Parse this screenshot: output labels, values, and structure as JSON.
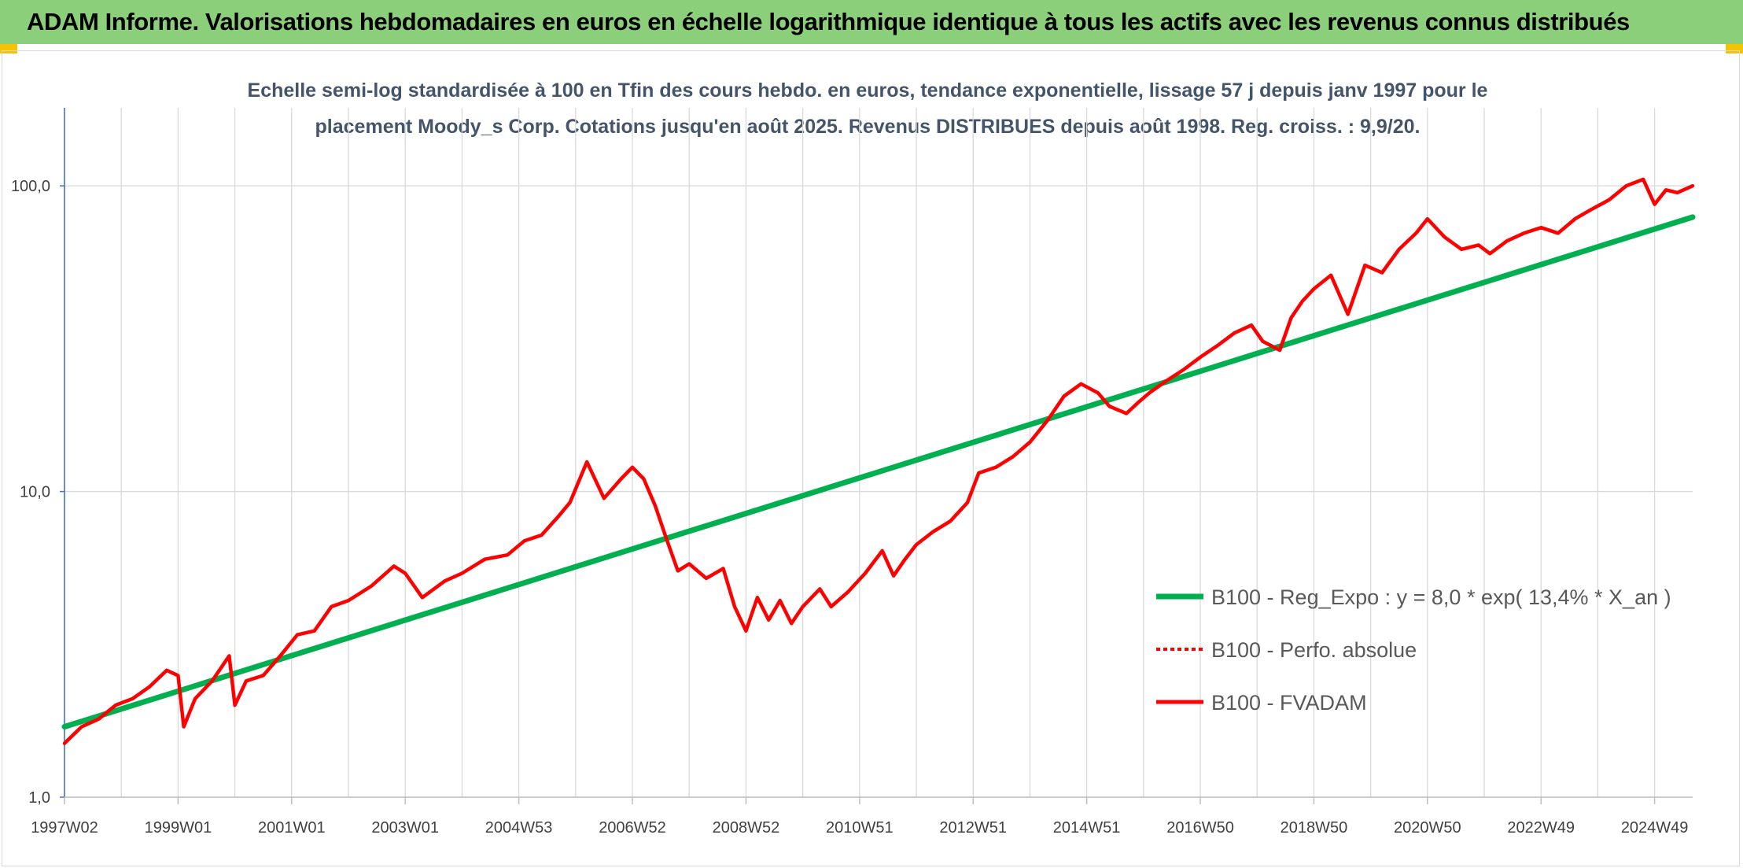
{
  "page": {
    "title": "ADAM Informe. Valorisations hebdomadaires en euros en échelle logarithmique identique à tous les actifs avec les revenus connus distribués"
  },
  "chart_data": {
    "type": "line",
    "subtitle_lines": [
      "Echelle semi-log standardisée à 100 en Tfin des cours hebdo. en euros, tendance exponentielle, lissage 57 j depuis janv 1997 pour le",
      "placement Moody_s Corp. Cotations jusqu'en août 2025. Revenus DISTRIBUES depuis août 1998. Reg. croiss. : 9,9/20."
    ],
    "y_scale": "log",
    "ylim": [
      1,
      180
    ],
    "y_ticks": [
      {
        "value": 1,
        "label": "1,0"
      },
      {
        "value": 10,
        "label": "10,0"
      },
      {
        "value": 100,
        "label": "100,0"
      }
    ],
    "xlim": [
      1997.0,
      2025.67
    ],
    "x_ticks": [
      {
        "value": 1997.0,
        "label": "1997W02"
      },
      {
        "value": 1999.0,
        "label": "1999W01"
      },
      {
        "value": 2001.0,
        "label": "2001W01"
      },
      {
        "value": 2003.0,
        "label": "2003W01"
      },
      {
        "value": 2005.0,
        "label": "2004W53"
      },
      {
        "value": 2007.0,
        "label": "2006W52"
      },
      {
        "value": 2009.0,
        "label": "2008W52"
      },
      {
        "value": 2011.0,
        "label": "2010W51"
      },
      {
        "value": 2013.0,
        "label": "2012W51"
      },
      {
        "value": 2015.0,
        "label": "2014W51"
      },
      {
        "value": 2017.0,
        "label": "2016W50"
      },
      {
        "value": 2019.0,
        "label": "2018W50"
      },
      {
        "value": 2021.0,
        "label": "2020W50"
      },
      {
        "value": 2023.0,
        "label": "2022W49"
      },
      {
        "value": 2025.0,
        "label": "2024W49"
      }
    ],
    "grid": true,
    "legend_position": "bottom-right",
    "series": [
      {
        "name": "B100 - Reg_Expo : y = 8,0 * exp( 13,4% *  X_an )",
        "color": "#00b050",
        "style": "solid",
        "x": [
          1997.0,
          2025.67
        ],
        "y": [
          1.7,
          79
        ]
      },
      {
        "name": "B100 - Perfo. absolue",
        "color": "#ff0000",
        "style": "dotted",
        "x": [],
        "y": []
      },
      {
        "name": "B100 - FVADAM",
        "color": "#ff0000",
        "style": "solid",
        "x": [
          1997.0,
          1997.3,
          1997.6,
          1997.9,
          1998.2,
          1998.5,
          1998.8,
          1999.0,
          1999.1,
          1999.3,
          1999.6,
          1999.9,
          2000.0,
          2000.2,
          2000.5,
          2000.8,
          2001.1,
          2001.4,
          2001.7,
          2002.0,
          2002.4,
          2002.8,
          2003.0,
          2003.3,
          2003.7,
          2004.0,
          2004.4,
          2004.8,
          2005.1,
          2005.4,
          2005.7,
          2005.9,
          2006.2,
          2006.5,
          2006.8,
          2007.0,
          2007.2,
          2007.4,
          2007.6,
          2007.8,
          2008.0,
          2008.3,
          2008.6,
          2008.8,
          2009.0,
          2009.2,
          2009.4,
          2009.6,
          2009.8,
          2010.0,
          2010.3,
          2010.5,
          2010.8,
          2011.1,
          2011.4,
          2011.6,
          2011.8,
          2012.0,
          2012.3,
          2012.6,
          2012.9,
          2013.1,
          2013.4,
          2013.7,
          2014.0,
          2014.3,
          2014.6,
          2014.9,
          2015.2,
          2015.4,
          2015.7,
          2015.9,
          2016.1,
          2016.4,
          2016.7,
          2017.0,
          2017.3,
          2017.6,
          2017.9,
          2018.1,
          2018.4,
          2018.6,
          2018.8,
          2019.0,
          2019.3,
          2019.6,
          2019.9,
          2020.1,
          2020.2,
          2020.5,
          2020.8,
          2021.0,
          2021.3,
          2021.6,
          2021.9,
          2022.1,
          2022.4,
          2022.7,
          2023.0,
          2023.3,
          2023.6,
          2023.9,
          2024.2,
          2024.5,
          2024.8,
          2025.0,
          2025.2,
          2025.4,
          2025.67
        ],
        "y": [
          1.5,
          1.7,
          1.8,
          2.0,
          2.1,
          2.3,
          2.6,
          2.5,
          1.7,
          2.1,
          2.4,
          2.9,
          2.0,
          2.4,
          2.5,
          2.9,
          3.4,
          3.5,
          4.2,
          4.4,
          4.9,
          5.7,
          5.4,
          4.5,
          5.1,
          5.4,
          6.0,
          6.2,
          6.9,
          7.2,
          8.3,
          9.2,
          12.5,
          9.5,
          11.0,
          12.0,
          11.0,
          9.0,
          7.0,
          5.5,
          5.8,
          5.2,
          5.6,
          4.2,
          3.5,
          4.5,
          3.8,
          4.4,
          3.7,
          4.2,
          4.8,
          4.2,
          4.7,
          5.4,
          6.4,
          5.3,
          6.0,
          6.7,
          7.4,
          8.0,
          9.2,
          11.5,
          12.0,
          13.0,
          14.5,
          17.0,
          20.5,
          22.5,
          21.0,
          19.0,
          18.0,
          19.5,
          21.0,
          23.0,
          25.0,
          27.5,
          30.0,
          33.0,
          35.0,
          31.0,
          29.0,
          37.0,
          42.0,
          46.0,
          51.0,
          38.0,
          55.0,
          53.0,
          52.0,
          62.0,
          70.0,
          78.0,
          68.0,
          62.0,
          64.0,
          60.0,
          66.0,
          70.0,
          73.0,
          70.0,
          78.0,
          84.0,
          90.0,
          100.0,
          105.0,
          87.0,
          97.0,
          95.0,
          100.0
        ]
      }
    ]
  }
}
